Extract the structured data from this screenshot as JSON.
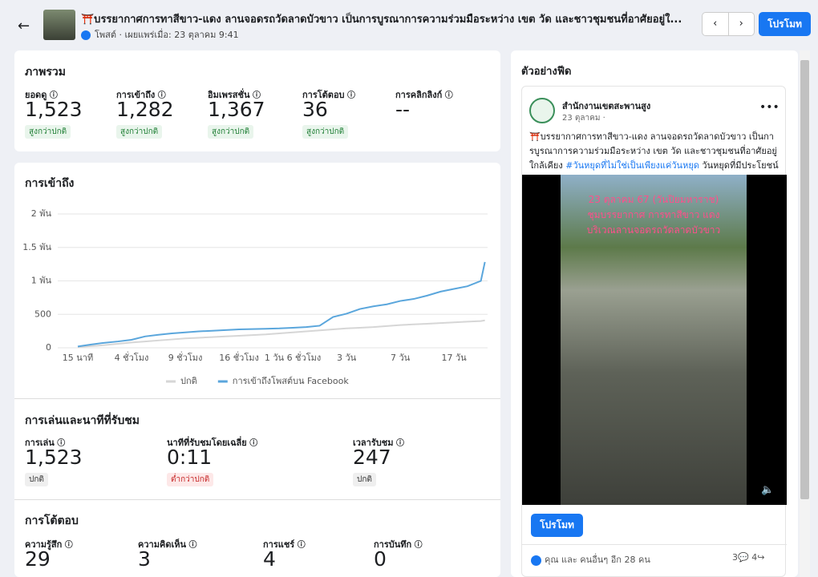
{
  "header": {
    "title": "⛩️บรรยากาศการทาสีขาว-แดง ลานจอดรถวัดลาดบัวขาว เป็นการบูรณาการความร่วมมือระหว่าง เขต วัด และชาวชุมชนที่อาศัยอยู่ใ...",
    "subtitle": "โพสต์ · เผยแพร่เมื่อ: 23 ตุลาคม 9:41",
    "promote": "โปรโมท"
  },
  "overview": {
    "title": "ภาพรวม",
    "metrics": [
      {
        "label": "ยอดดู",
        "value": "1,523",
        "badge": "สูงกว่าปกติ",
        "badge_color": "#1e7e34"
      },
      {
        "label": "การเข้าถึง",
        "value": "1,282",
        "badge": "สูงกว่าปกติ",
        "badge_color": "#1e7e34"
      },
      {
        "label": "อิมเพรสชั่น",
        "value": "1,367",
        "badge": "สูงกว่าปกติ",
        "badge_color": "#1e7e34"
      },
      {
        "label": "การโต้ตอบ",
        "value": "36",
        "badge": "สูงกว่าปกติ",
        "badge_color": "#1e7e34"
      },
      {
        "label": "การคลิกลิงก์",
        "value": "--"
      }
    ]
  },
  "reach": {
    "title": "การเข้าถึง"
  },
  "chart_data": {
    "type": "line",
    "x": [
      0,
      1,
      2,
      3,
      4,
      5,
      6,
      7,
      8,
      9,
      10,
      11,
      12,
      13,
      14,
      15,
      16,
      17,
      18,
      19,
      20,
      21,
      22,
      23,
      24,
      25,
      26,
      27,
      28,
      29,
      30,
      30.3
    ],
    "series": [
      {
        "name": "ปกติ",
        "color": "#d6d6d6",
        "values": [
          10,
          25,
          40,
          60,
          80,
          95,
          110,
          125,
          140,
          150,
          160,
          170,
          180,
          190,
          200,
          215,
          230,
          245,
          260,
          275,
          290,
          300,
          310,
          325,
          340,
          350,
          360,
          370,
          380,
          390,
          400,
          410
        ]
      },
      {
        "name": "การเข้าถึงโพสต์บน Facebook",
        "color": "#5aa6dc",
        "values": [
          20,
          50,
          75,
          95,
          120,
          170,
          195,
          215,
          230,
          245,
          255,
          265,
          275,
          280,
          285,
          290,
          300,
          310,
          330,
          460,
          510,
          580,
          620,
          650,
          700,
          730,
          780,
          840,
          880,
          920,
          1000,
          1282
        ]
      }
    ],
    "xlim": [
      0,
      30.5
    ],
    "xticks": [
      {
        "value": 0,
        "label": "15 นาที"
      },
      {
        "value": 4,
        "label": "4 ชั่วโมง"
      },
      {
        "value": 8,
        "label": "9 ชั่วโมง"
      },
      {
        "value": 12,
        "label": "16 ชั่วโมง"
      },
      {
        "value": 16,
        "label": "1 วัน 6 ชั่วโมง"
      },
      {
        "value": 20,
        "label": "3 วัน"
      },
      {
        "value": 24,
        "label": "7 วัน"
      },
      {
        "value": 28,
        "label": "17 วัน"
      }
    ],
    "ylim": [
      0,
      2000
    ],
    "yticks": [
      0,
      500,
      {
        "value": 1000,
        "label": "1 พัน"
      },
      {
        "value": 1500,
        "label": "1.5 พัน"
      },
      {
        "value": 2000,
        "label": "2 พัน"
      }
    ],
    "grid": true
  },
  "plays": {
    "title": "การเล่นและนาทีที่รับชม",
    "metrics": [
      {
        "label": "การเล่น",
        "value": "1,523",
        "badge": "ปกติ",
        "badge_color": "#333333"
      },
      {
        "label": "นาทีที่รับชมโดยเฉลี่ย",
        "value": "0:11",
        "badge": "ต่ำกว่าปกติ",
        "badge_color": "#c62828"
      },
      {
        "label": "เวลารับชม",
        "value": "247",
        "badge": "ปกติ",
        "badge_color": "#333333"
      }
    ]
  },
  "engagement": {
    "title": "การโต้ตอบ",
    "metrics": [
      {
        "label": "ความรู้สึก",
        "value": "29"
      },
      {
        "label": "ความคิดเห็น",
        "value": "3"
      },
      {
        "label": "การแชร์",
        "value": "4"
      },
      {
        "label": "การบันทึก",
        "value": "0"
      }
    ]
  },
  "preview": {
    "title": "ตัวอย่างฟีด",
    "page_name": "สำนักงานเขตสะพานสูง",
    "date": "23 ตุลาคม ·",
    "text": "⛩️บรรยากาศการทาสีขาว-แดง ลานจอดรถวัดลาดบัวขาว เป็นการบูรณาการความร่วมมือระหว่าง เขต วัด และชาวชุมชนที่อาศัยอยู่ใกล้เคียง",
    "hashtag": "#วันหยุดที่ไม่ใช่เป็นเพียงแค่วันหยุด",
    "text_end": " วันหยุดที่มีประโยชน์",
    "video_lines": [
      "23 ตุลาคม 67 (วันปิยมหาราช)",
      "ชุมบรรยากาศ การทาสีขาว แดง",
      "บริเวณลานจอดรถวัดลาดบัวขาว"
    ],
    "promote": "โปรโมท",
    "reactions": "คุณ และ คนอื่นๆ อีก 28 คน",
    "comments": "3",
    "shares": "4"
  }
}
